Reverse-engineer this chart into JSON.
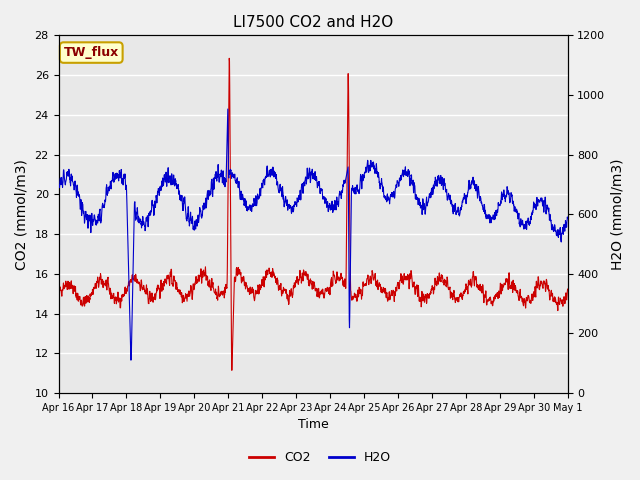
{
  "title": "LI7500 CO2 and H2O",
  "xlabel": "Time",
  "ylabel_left": "CO2 (mmol/m3)",
  "ylabel_right": "H2O (mmol/m3)",
  "annotation": "TW_flux",
  "annotation_color": "#8B0000",
  "annotation_bg": "#FFFFCC",
  "annotation_border": "#C8A000",
  "co2_color": "#CC0000",
  "h2o_color": "#0000CC",
  "ylim_left": [
    10,
    28
  ],
  "ylim_right": [
    0,
    1200
  ],
  "yticks_left": [
    10,
    12,
    14,
    16,
    18,
    20,
    22,
    24,
    26,
    28
  ],
  "yticks_right": [
    0,
    200,
    400,
    600,
    800,
    1000,
    1200
  ],
  "x_labels": [
    "Apr 16",
    "Apr 17",
    "Apr 18",
    "Apr 19",
    "Apr 20",
    "Apr 21",
    "Apr 22",
    "Apr 23",
    "Apr 24",
    "Apr 25",
    "Apr 26",
    "Apr 27",
    "Apr 28",
    "Apr 29",
    "Apr 30",
    "May 1"
  ],
  "bg_color": "#E8E8E8",
  "grid_color": "#FFFFFF",
  "legend_co2": "CO2",
  "legend_h2o": "H2O"
}
